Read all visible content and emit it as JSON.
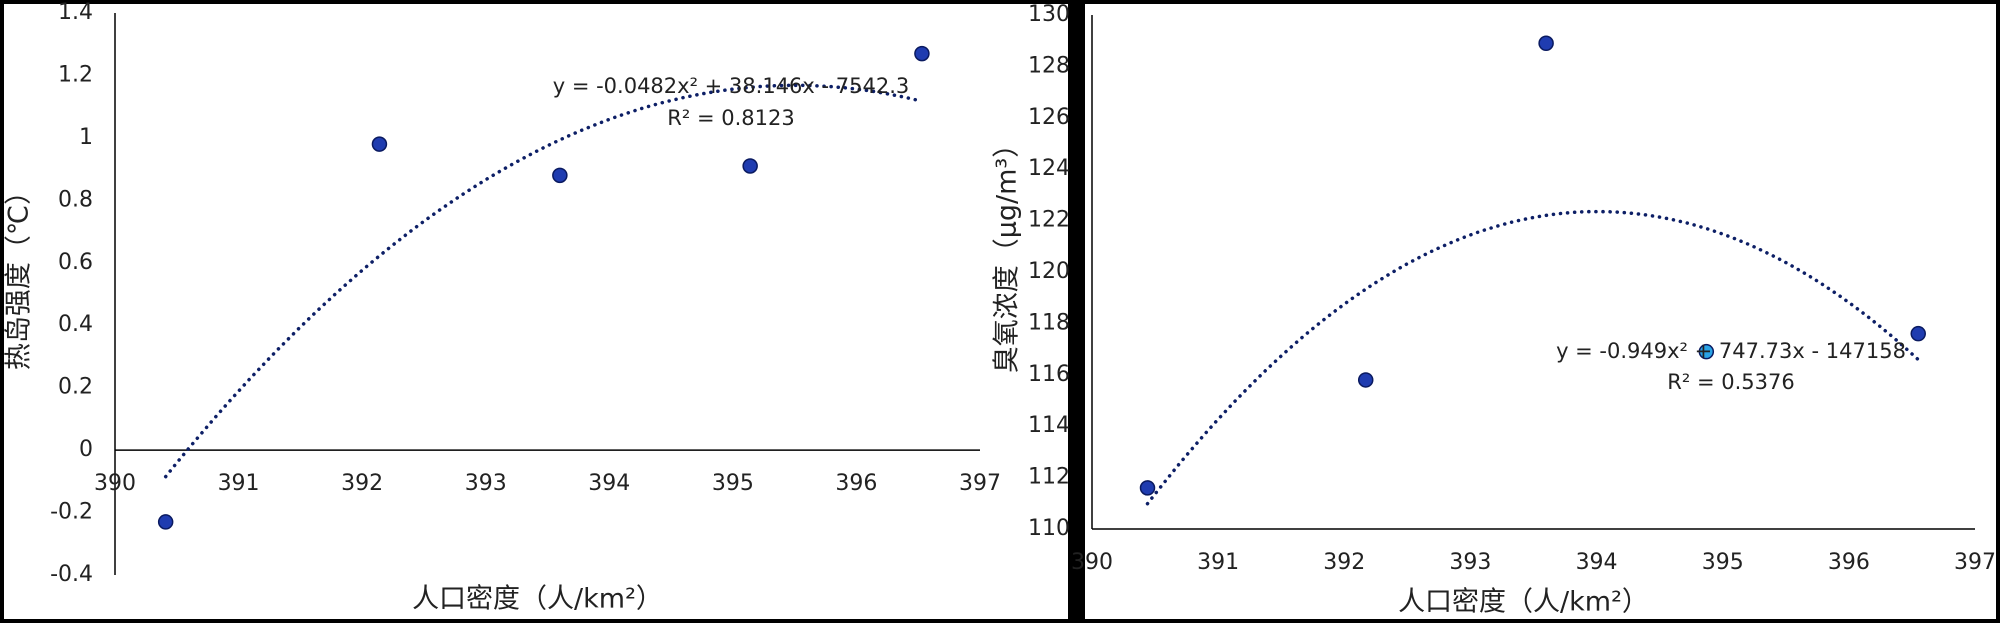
{
  "chart_data": [
    {
      "type": "scatter",
      "x_label": "人口密度（人/km²）",
      "y_label": "热岛强度（℃）",
      "x": [
        390.41,
        392.14,
        393.6,
        395.14,
        396.53
      ],
      "values": [
        -0.23,
        0.98,
        0.88,
        0.91,
        1.27
      ],
      "colors": [
        "#1f3cb0",
        "#1f3cb0",
        "#1f3cb0",
        "#1f3cb0",
        "#1f3cb0"
      ],
      "xlim": [
        390,
        397
      ],
      "xticks": [
        390,
        391,
        392,
        393,
        394,
        395,
        396,
        397
      ],
      "ylim": [
        -0.4,
        1.4
      ],
      "yticks": [
        -0.4,
        -0.2,
        0,
        0.2,
        0.4,
        0.6,
        0.8,
        1,
        1.2,
        1.4
      ],
      "trendline": {
        "order": 2,
        "color": "#0d1f66"
      },
      "annotations": [
        "y = -0.0482x² + 38.146x - 7542.3",
        "R² = 0.8123"
      ]
    },
    {
      "type": "scatter",
      "x_label": "人口密度（人/km²）",
      "y_label": "臭氧浓度（μg/m³）",
      "x": [
        390.44,
        392.17,
        393.6,
        394.87,
        396.55
      ],
      "values": [
        111.6,
        115.8,
        128.9,
        116.9,
        117.6
      ],
      "colors": [
        "#1f3cb0",
        "#1f3cb0",
        "#1f3cb0",
        "#2aa3e6",
        "#1f3cb0"
      ],
      "xlim": [
        390,
        397
      ],
      "xticks": [
        390,
        391,
        392,
        393,
        394,
        395,
        396,
        397
      ],
      "ylim": [
        110,
        130
      ],
      "yticks": [
        110,
        112,
        114,
        116,
        118,
        120,
        122,
        124,
        126,
        128,
        130
      ],
      "trendline": {
        "order": 2,
        "color": "#0d1f66"
      },
      "annotations": [
        "y = -0.949x² + 747.73x - 147158",
        "R² = 0.5376"
      ]
    }
  ]
}
